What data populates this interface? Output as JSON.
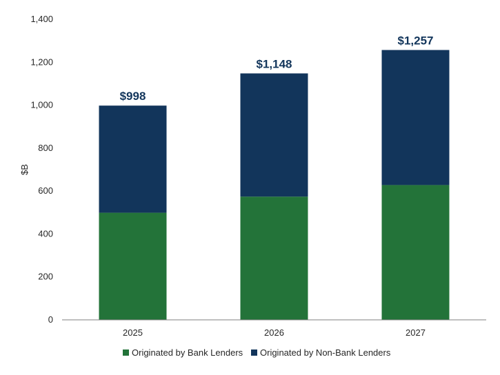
{
  "chart_data": {
    "type": "bar",
    "stacked": true,
    "categories": [
      "2025",
      "2026",
      "2027"
    ],
    "series": [
      {
        "name": "Originated by Bank Lenders",
        "values": [
          499,
          574,
          628
        ],
        "color": "#237339"
      },
      {
        "name": "Originated by Non-Bank Lenders",
        "values": [
          499,
          574,
          629
        ],
        "color": "#12355b"
      }
    ],
    "totals": [
      998,
      1148,
      1257
    ],
    "total_labels": [
      "$998",
      "$1,148",
      "$1,257"
    ],
    "ylabel": "$B",
    "xlabel": "",
    "ylim": [
      0,
      1400
    ],
    "yticks": [
      0,
      200,
      400,
      600,
      800,
      1000,
      1200,
      1400
    ],
    "ytick_labels": [
      "0",
      "200",
      "400",
      "600",
      "800",
      "1,000",
      "1,200",
      "1,400"
    ],
    "grid": false,
    "legend_position": "bottom"
  }
}
